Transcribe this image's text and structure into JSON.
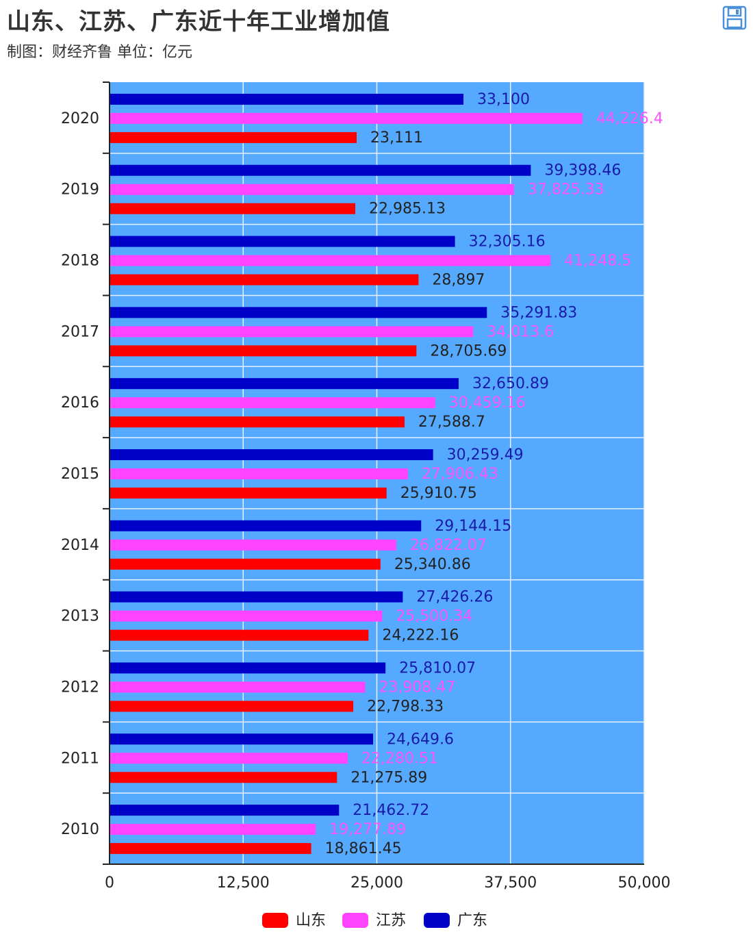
{
  "header": {
    "title": "山东、江苏、广东近十年工业增加值",
    "subtitle": "制图：财经齐鲁 单位：亿元"
  },
  "toolbar": {
    "save_icon": "save-icon"
  },
  "chart_data": {
    "type": "bar",
    "orientation": "horizontal",
    "categories": [
      "2020",
      "2019",
      "2018",
      "2017",
      "2016",
      "2015",
      "2014",
      "2013",
      "2012",
      "2011",
      "2010"
    ],
    "series": [
      {
        "name": "广东",
        "color": "#0000c8",
        "values": [
          33100,
          39398.46,
          32305.16,
          35291.83,
          32650.89,
          30259.49,
          29144.15,
          27426.26,
          25810.07,
          24649.6,
          21462.72
        ],
        "labels": [
          "33,100",
          "39,398.46",
          "32,305.16",
          "35,291.83",
          "32,650.89",
          "30,259.49",
          "29,144.15",
          "27,426.26",
          "25,810.07",
          "24,649.6",
          "21,462.72"
        ]
      },
      {
        "name": "江苏",
        "color": "#ff44ff",
        "values": [
          44226.4,
          37825.33,
          41248.5,
          34013.6,
          30459.16,
          27906.43,
          26822.07,
          25500.34,
          23908.47,
          22280.51,
          19277.89
        ],
        "labels": [
          "44,226.4",
          "37,825.33",
          "41,248.5",
          "34,013.6",
          "30,459.16",
          "27,906.43",
          "26,822.07",
          "25,500.34",
          "23,908.47",
          "22,280.51",
          "19,277.89"
        ]
      },
      {
        "name": "山东",
        "color": "#ff0000",
        "values": [
          23111,
          22985.13,
          28897,
          28705.69,
          27588.7,
          25910.75,
          25340.86,
          24222.16,
          22798.33,
          21275.89,
          18861.45
        ],
        "labels": [
          "23,111",
          "22,985.13",
          "28,897",
          "28,705.69",
          "27,588.7",
          "25,910.75",
          "25,340.86",
          "24,222.16",
          "22,798.33",
          "21,275.89",
          "18,861.45"
        ]
      }
    ],
    "xlim": [
      0,
      50000
    ],
    "xticks": [
      "0",
      "12,500",
      "25,000",
      "37,500",
      "50,000"
    ],
    "xtick_values": [
      0,
      12500,
      25000,
      37500,
      50000
    ],
    "grid": true,
    "plot_background": "#55aaff",
    "legend": {
      "position": "bottom-center",
      "order": [
        "山东",
        "江苏",
        "广东"
      ]
    }
  }
}
